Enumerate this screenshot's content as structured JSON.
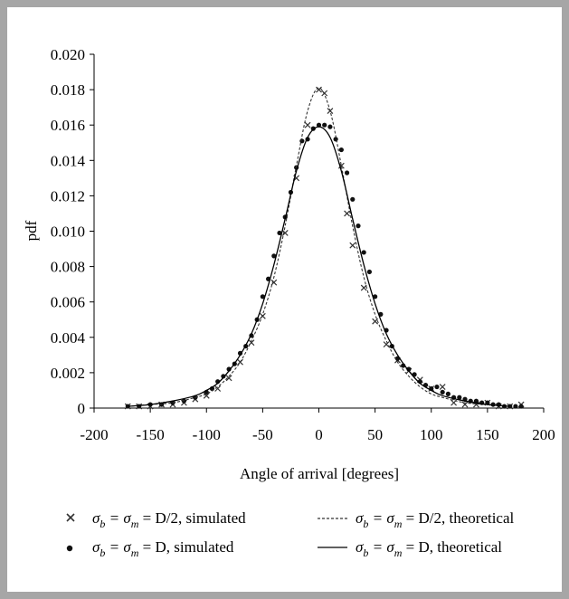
{
  "chart_data": {
    "type": "scatter",
    "xlabel": "Angle of arrival [degrees]",
    "ylabel": "pdf",
    "xlim": [
      -200,
      200
    ],
    "ylim": [
      0,
      0.02
    ],
    "xticks": [
      -200,
      -150,
      -100,
      -50,
      0,
      50,
      100,
      150,
      200
    ],
    "yticks": [
      0,
      0.002,
      0.004,
      0.006,
      0.008,
      0.01,
      0.012,
      0.014,
      0.016,
      0.018,
      0.02
    ],
    "xtick_labels": [
      "-200",
      "-150",
      "-100",
      "-50",
      "0",
      "50",
      "100",
      "150",
      "200"
    ],
    "ytick_labels": [
      "0",
      "0.002",
      "0.004",
      "0.006",
      "0.008",
      "0.010",
      "0.012",
      "0.014",
      "0.016",
      "0.018",
      "0.020"
    ],
    "grid": false,
    "legend_position": "bottom",
    "series": [
      {
        "name": "σb = σm = D/2, simulated",
        "style": "x-marker",
        "color": "#333333",
        "x": [
          -170,
          -160,
          -150,
          -140,
          -130,
          -120,
          -110,
          -100,
          -90,
          -80,
          -70,
          -60,
          -50,
          -40,
          -30,
          -20,
          -10,
          0,
          5,
          10,
          20,
          25,
          30,
          40,
          50,
          60,
          70,
          80,
          90,
          100,
          110,
          120,
          130,
          140,
          150,
          160,
          170,
          180
        ],
        "y": [
          0.0001,
          0.0001,
          0.0001,
          0.0002,
          0.0002,
          0.0003,
          0.0005,
          0.0007,
          0.0011,
          0.0017,
          0.0026,
          0.0037,
          0.0052,
          0.0071,
          0.0099,
          0.013,
          0.016,
          0.018,
          0.0178,
          0.0168,
          0.0137,
          0.011,
          0.0092,
          0.0068,
          0.0049,
          0.0036,
          0.0027,
          0.0021,
          0.0016,
          0.0011,
          0.0012,
          0.0003,
          0.0002,
          0.0002,
          0.0003,
          0.0001,
          0.0001,
          0.0002
        ]
      },
      {
        "name": "σb = σm = D, simulated",
        "style": "dot-marker",
        "color": "#111111",
        "x": [
          -170,
          -160,
          -150,
          -140,
          -130,
          -120,
          -110,
          -100,
          -95,
          -90,
          -85,
          -80,
          -75,
          -70,
          -65,
          -60,
          -55,
          -50,
          -45,
          -40,
          -35,
          -30,
          -25,
          -20,
          -15,
          -10,
          -5,
          0,
          5,
          10,
          15,
          20,
          25,
          30,
          35,
          40,
          45,
          50,
          55,
          60,
          65,
          70,
          75,
          80,
          85,
          90,
          95,
          100,
          105,
          110,
          115,
          120,
          125,
          130,
          135,
          140,
          145,
          150,
          155,
          160,
          165,
          170,
          175,
          180
        ],
        "y": [
          0.0001,
          0.0001,
          0.0002,
          0.0002,
          0.0003,
          0.0004,
          0.0006,
          0.0009,
          0.0011,
          0.0015,
          0.0018,
          0.0022,
          0.0025,
          0.0031,
          0.0035,
          0.0041,
          0.005,
          0.0063,
          0.0073,
          0.0086,
          0.0099,
          0.0108,
          0.0122,
          0.0136,
          0.0151,
          0.0152,
          0.0158,
          0.016,
          0.016,
          0.0159,
          0.0152,
          0.0146,
          0.0133,
          0.0118,
          0.0103,
          0.0088,
          0.0077,
          0.0063,
          0.0053,
          0.0044,
          0.0035,
          0.0028,
          0.0024,
          0.0022,
          0.0019,
          0.0015,
          0.0013,
          0.0011,
          0.0012,
          0.0009,
          0.0008,
          0.0006,
          0.0006,
          0.0005,
          0.0004,
          0.0004,
          0.0003,
          0.0003,
          0.0002,
          0.0002,
          0.0001,
          0.0001,
          0.0001,
          0.0001
        ]
      },
      {
        "name": "σb = σm = D/2, theoretical",
        "style": "dashed-line",
        "color": "#333333",
        "x": [
          -170,
          -150,
          -130,
          -110,
          -100,
          -90,
          -80,
          -70,
          -60,
          -50,
          -40,
          -30,
          -20,
          -10,
          0,
          10,
          20,
          30,
          40,
          50,
          60,
          70,
          80,
          90,
          100,
          110,
          130,
          150,
          170
        ],
        "y": [
          0.0001,
          0.0002,
          0.0003,
          0.0006,
          0.0008,
          0.0012,
          0.0018,
          0.0026,
          0.0038,
          0.0053,
          0.0074,
          0.0103,
          0.0137,
          0.0168,
          0.0181,
          0.0168,
          0.0137,
          0.0103,
          0.0074,
          0.0053,
          0.0038,
          0.0026,
          0.0018,
          0.0012,
          0.0008,
          0.0006,
          0.0003,
          0.0002,
          0.0001
        ]
      },
      {
        "name": "σb = σm = D, theoretical",
        "style": "solid-line",
        "color": "#000000",
        "x": [
          -170,
          -150,
          -130,
          -110,
          -100,
          -90,
          -80,
          -70,
          -60,
          -50,
          -40,
          -30,
          -20,
          -10,
          0,
          10,
          20,
          30,
          40,
          50,
          60,
          70,
          80,
          90,
          100,
          110,
          130,
          150,
          170
        ],
        "y": [
          0.0001,
          0.0002,
          0.0004,
          0.0007,
          0.001,
          0.0014,
          0.0021,
          0.003,
          0.0042,
          0.0059,
          0.0081,
          0.0107,
          0.0134,
          0.0153,
          0.0159,
          0.0153,
          0.0134,
          0.0107,
          0.0081,
          0.0059,
          0.0042,
          0.003,
          0.0021,
          0.0014,
          0.001,
          0.0007,
          0.0004,
          0.0002,
          0.0001
        ]
      }
    ]
  },
  "legend": {
    "items": [
      {
        "key": "sim_half",
        "pre": "σ",
        "sub1": "b",
        "mid": " = σ",
        "sub2": "m",
        "post": " = D/2, simulated"
      },
      {
        "key": "sim_full",
        "pre": "σ",
        "sub1": "b",
        "mid": " = σ",
        "sub2": "m",
        "post": " = D, simulated"
      },
      {
        "key": "theo_half",
        "pre": "σ",
        "sub1": "b",
        "mid": " = σ",
        "sub2": "m",
        "post": " = D/2, theoretical"
      },
      {
        "key": "theo_full",
        "pre": "σ",
        "sub1": "b",
        "mid": " = σ",
        "sub2": "m",
        "post": " = D, theoretical"
      }
    ]
  }
}
